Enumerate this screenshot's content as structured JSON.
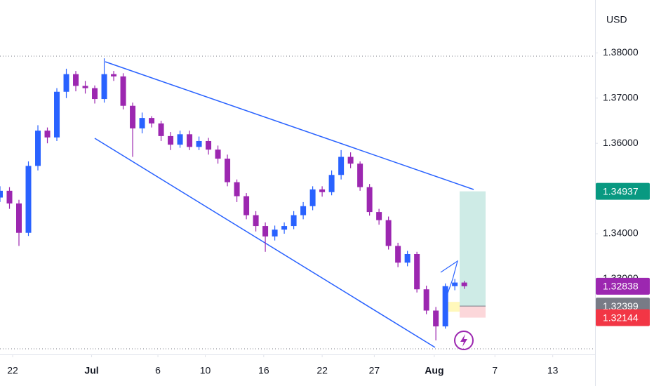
{
  "chart_data": {
    "type": "candlestick",
    "y_axis_label": "USD",
    "up_color": "#2962ff",
    "down_color": "#9c27b0",
    "x": [
      0,
      3,
      6,
      9,
      12,
      15,
      18,
      21,
      24,
      27,
      30,
      33,
      36,
      39,
      42,
      45,
      48,
      51,
      54,
      57,
      60,
      63,
      66,
      69,
      72,
      75,
      78,
      81,
      84,
      87,
      90,
      93,
      96,
      99,
      102,
      105,
      108,
      111,
      114,
      117,
      120,
      123,
      126,
      129,
      132,
      135,
      138,
      141,
      144,
      147
    ],
    "open": [
      1.348,
      1.3495,
      1.3467,
      1.3402,
      1.355,
      1.3628,
      1.3613,
      1.3714,
      1.3753,
      1.3727,
      1.3722,
      1.3698,
      1.3753,
      1.3748,
      1.3683,
      1.3633,
      1.3656,
      1.3644,
      1.3616,
      1.3597,
      1.362,
      1.3592,
      1.3605,
      1.3586,
      1.3566,
      1.3514,
      1.3483,
      1.3441,
      1.3417,
      1.3394,
      1.3409,
      1.3417,
      1.3441,
      1.3461,
      1.3498,
      1.3492,
      1.353,
      1.357,
      1.3555,
      1.3503,
      1.3448,
      1.343,
      1.3373,
      1.3336,
      1.3355,
      1.3277,
      1.323,
      1.3195,
      1.3284,
      1.3292
    ],
    "high": [
      1.3505,
      1.3503,
      1.3475,
      1.356,
      1.364,
      1.3635,
      1.3722,
      1.3765,
      1.376,
      1.3738,
      1.3728,
      1.3788,
      1.376,
      1.3755,
      1.369,
      1.3668,
      1.366,
      1.365,
      1.3625,
      1.3628,
      1.3628,
      1.3615,
      1.3612,
      1.3595,
      1.3575,
      1.352,
      1.349,
      1.345,
      1.3425,
      1.3418,
      1.3425,
      1.345,
      1.347,
      1.3505,
      1.3505,
      1.354,
      1.3585,
      1.358,
      1.356,
      1.351,
      1.3455,
      1.3438,
      1.338,
      1.3362,
      1.336,
      1.3285,
      1.3238,
      1.329,
      1.33,
      1.3296
    ],
    "low": [
      1.347,
      1.3455,
      1.3373,
      1.3395,
      1.354,
      1.36,
      1.3605,
      1.37,
      1.3715,
      1.371,
      1.3688,
      1.369,
      1.3738,
      1.3675,
      1.357,
      1.3622,
      1.3635,
      1.3605,
      1.3585,
      1.359,
      1.3585,
      1.3585,
      1.3575,
      1.3555,
      1.3505,
      1.347,
      1.3432,
      1.3405,
      1.336,
      1.3385,
      1.34,
      1.341,
      1.3432,
      1.3452,
      1.3482,
      1.3485,
      1.352,
      1.3545,
      1.3495,
      1.344,
      1.342,
      1.3365,
      1.3326,
      1.3328,
      1.327,
      1.3222,
      1.3164,
      1.319,
      1.3275,
      1.3278
    ],
    "close": [
      1.3495,
      1.3467,
      1.3402,
      1.355,
      1.3628,
      1.3613,
      1.3714,
      1.3753,
      1.3727,
      1.3722,
      1.3698,
      1.3753,
      1.3748,
      1.3683,
      1.3633,
      1.3656,
      1.3644,
      1.3616,
      1.3597,
      1.362,
      1.3592,
      1.3605,
      1.3586,
      1.3566,
      1.3514,
      1.3483,
      1.3441,
      1.3417,
      1.3394,
      1.3409,
      1.3417,
      1.3441,
      1.3461,
      1.3498,
      1.3492,
      1.353,
      1.357,
      1.3555,
      1.3503,
      1.3448,
      1.343,
      1.3373,
      1.3336,
      1.3355,
      1.3277,
      1.323,
      1.3195,
      1.3284,
      1.3292,
      1.32838
    ],
    "xlim": [
      0,
      188.4
    ],
    "xticks": [
      {
        "value": 4,
        "label": "22"
      },
      {
        "value": 29,
        "label": "Jul"
      },
      {
        "value": 50,
        "label": "6"
      },
      {
        "value": 65,
        "label": "10"
      },
      {
        "value": 83.5,
        "label": "16"
      },
      {
        "value": 102,
        "label": "22"
      },
      {
        "value": 118.5,
        "label": "27"
      },
      {
        "value": 137.5,
        "label": "Aug"
      },
      {
        "value": 156.7,
        "label": "7"
      },
      {
        "value": 175,
        "label": "13"
      }
    ],
    "ylim": [
      1.3133,
      1.3917
    ],
    "yticks": [
      {
        "value": 1.38,
        "label": "1.38000"
      },
      {
        "value": 1.37,
        "label": "1.37000"
      },
      {
        "value": 1.36,
        "label": "1.36000"
      },
      {
        "value": 1.35,
        "label": "1.35000"
      },
      {
        "value": 1.34,
        "label": "1.34000"
      },
      {
        "value": 1.33,
        "label": "1.33000"
      }
    ],
    "grid": false,
    "price_labels": [
      {
        "value": 1.34937,
        "color": "#089981"
      },
      {
        "value": 1.32838,
        "color": "#9c27b0"
      },
      {
        "value": 1.32399,
        "color": "#787b86"
      },
      {
        "value": 1.32144,
        "color": "#f23645"
      }
    ]
  }
}
